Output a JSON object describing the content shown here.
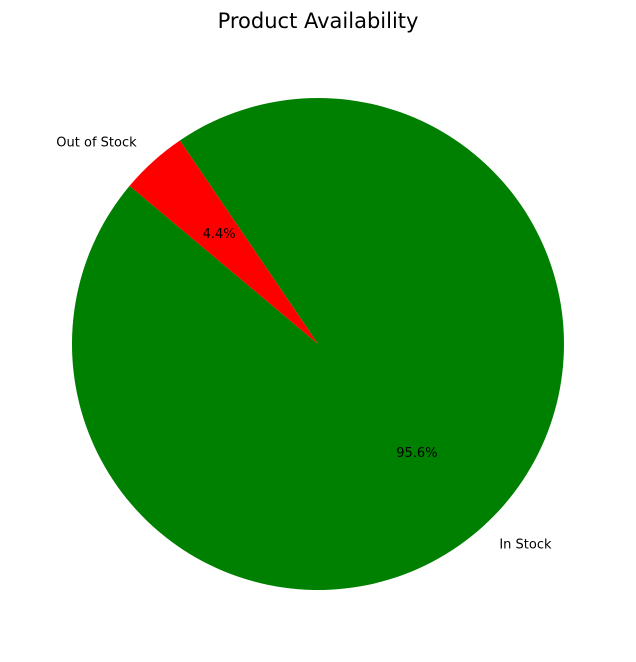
{
  "chart_data": {
    "type": "pie",
    "title": "Product Availability",
    "slices": [
      {
        "label": "In Stock",
        "value": 95.6,
        "pct_label": "95.6%",
        "color": "#008000"
      },
      {
        "label": "Out of Stock",
        "value": 4.4,
        "pct_label": "4.4%",
        "color": "#ff0000"
      }
    ],
    "start_angle_deg": 140,
    "direction": "counterclockwise"
  }
}
